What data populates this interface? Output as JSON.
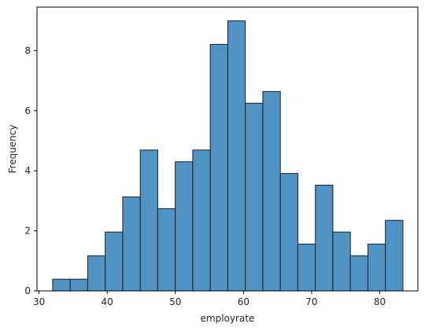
{
  "chart_data": {
    "type": "bar",
    "subtype": "histogram",
    "xlabel": "employrate",
    "ylabel": "Frequency",
    "xlim": [
      29.7,
      85.6
    ],
    "ylim": [
      0,
      9.45
    ],
    "xticks": [
      30,
      40,
      50,
      60,
      70,
      80
    ],
    "yticks": [
      0,
      2,
      4,
      6,
      8
    ],
    "bin_edges": [
      32.0,
      34.57,
      37.14,
      39.71,
      42.28,
      44.85,
      47.42,
      49.99,
      52.56,
      55.13,
      57.7,
      60.27,
      62.84,
      65.41,
      67.98,
      70.55,
      73.12,
      75.69,
      78.26,
      80.83,
      83.4
    ],
    "values": [
      0.39,
      0.39,
      1.17,
      1.96,
      3.13,
      4.69,
      2.74,
      4.3,
      4.69,
      8.21,
      8.99,
      6.25,
      6.64,
      3.91,
      1.56,
      3.52,
      1.96,
      1.17,
      1.56,
      2.35
    ],
    "bar_color": "#4f94c4",
    "edge_color": "#1f1f1f",
    "grid": false,
    "legend": "none"
  }
}
